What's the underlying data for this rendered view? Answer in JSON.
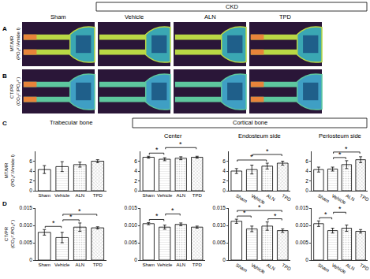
{
  "panel_letters": [
    "A",
    "B",
    "C",
    "D"
  ],
  "group_header": "CKD",
  "image_columns": [
    "Sham",
    "Vehicle",
    "ALN",
    "TPD"
  ],
  "image_rows": [
    {
      "letter": "A",
      "label": [
        "MT/MR",
        "(PO₄³⁻/Amide I)"
      ]
    },
    {
      "letter": "B",
      "label": [
        "CT/PR",
        "(CO₃²⁻/PO₄³⁻)"
      ]
    }
  ],
  "section_headers": {
    "trabecular": "Trabecular bone",
    "cortical": "Cortical bone",
    "cortical_sub": [
      "Center",
      "Endosteum side",
      "Periosteum side"
    ]
  },
  "chart_rows": [
    {
      "letter": "C",
      "ylabel": [
        "MT/MR",
        "(PO₄³⁻/Amide I)"
      ]
    },
    {
      "letter": "D",
      "ylabel": [
        "CT/PR",
        "(CO₃²⁻/PO₄³⁻)"
      ]
    }
  ],
  "chart_data": [
    {
      "type": "bar",
      "categories": [
        "Sham",
        "Vehicle",
        "ALN",
        "TPD"
      ],
      "values": [
        4.3,
        4.9,
        5.3,
        6.0
      ],
      "errors": [
        0.8,
        1.0,
        0.5,
        0.3
      ],
      "colors": [
        "#ffffff",
        "#e6e6e6",
        "#d0d0d0",
        "#b8b8b8"
      ],
      "ylim": [
        0,
        8
      ],
      "yticks": [
        0,
        2,
        4,
        6
      ],
      "grid": false,
      "significance": []
    },
    {
      "type": "bar",
      "categories": [
        "Sham",
        "Vehicle",
        "ALN",
        "TPD"
      ],
      "values": [
        6.8,
        6.4,
        6.6,
        6.8
      ],
      "errors": [
        0.2,
        0.3,
        0.3,
        0.2
      ],
      "colors": [
        "#ffffff",
        "#e6e6e6",
        "#d0d0d0",
        "#b8b8b8"
      ],
      "ylim": [
        0,
        8
      ],
      "yticks": [
        0,
        2,
        4,
        6
      ],
      "grid": false,
      "significance": [
        {
          "pair": [
            0,
            1
          ],
          "label": "*"
        },
        {
          "pair": [
            1,
            3
          ],
          "label": "*"
        }
      ]
    },
    {
      "type": "bar",
      "categories": [
        "Sham",
        "Vehicle",
        "ALN",
        "TPD"
      ],
      "values": [
        4.0,
        4.3,
        5.0,
        5.6
      ],
      "errors": [
        0.5,
        0.9,
        0.6,
        0.4
      ],
      "colors": [
        "#ffffff",
        "#e6e6e6",
        "#d0d0d0",
        "#b8b8b8"
      ],
      "ylim": [
        0,
        8
      ],
      "yticks": [
        0,
        2,
        4,
        6
      ],
      "grid": false,
      "significance": [
        {
          "pair": [
            0,
            2
          ],
          "label": "*"
        },
        {
          "pair": [
            1,
            3
          ],
          "label": "*"
        }
      ]
    },
    {
      "type": "bar",
      "categories": [
        "Sham",
        "Vehicle",
        "ALN",
        "TPD"
      ],
      "values": [
        4.3,
        4.4,
        5.3,
        6.3
      ],
      "errors": [
        0.5,
        0.4,
        0.8,
        0.6
      ],
      "colors": [
        "#ffffff",
        "#e6e6e6",
        "#d0d0d0",
        "#b8b8b8"
      ],
      "ylim": [
        0,
        8
      ],
      "yticks": [
        0,
        2,
        4,
        6
      ],
      "grid": false,
      "significance": [
        {
          "pair": [
            1,
            2
          ],
          "label": "*"
        },
        {
          "pair": [
            1,
            3
          ],
          "label": "*"
        }
      ]
    },
    {
      "type": "bar",
      "categories": [
        "Sham",
        "Vehicle",
        "ALN",
        "TPD"
      ],
      "values": [
        0.008,
        0.0065,
        0.0095,
        0.0093
      ],
      "errors": [
        0.0008,
        0.0015,
        0.0012,
        0.0003
      ],
      "colors": [
        "#ffffff",
        "#e6e6e6",
        "#d0d0d0",
        "#b8b8b8"
      ],
      "ylim": [
        0,
        0.015
      ],
      "yticks": [
        0,
        0.005,
        {
          "value": 0.01,
          "label": "0.010"
        },
        0.015
      ],
      "grid": false,
      "significance": [
        {
          "pair": [
            0,
            1
          ],
          "label": "*"
        },
        {
          "pair": [
            1,
            2
          ],
          "label": "*"
        },
        {
          "pair": [
            1,
            3
          ],
          "label": "*"
        }
      ]
    },
    {
      "type": "bar",
      "categories": [
        "Sham",
        "Vehicle",
        "ALN",
        "TPD"
      ],
      "values": [
        0.0105,
        0.0095,
        0.0103,
        0.0095
      ],
      "errors": [
        0.0003,
        0.0006,
        0.0004,
        0.0003
      ],
      "colors": [
        "#ffffff",
        "#e6e6e6",
        "#d0d0d0",
        "#b8b8b8"
      ],
      "ylim": [
        0,
        0.015
      ],
      "yticks": [
        0,
        0.005,
        {
          "value": 0.01,
          "label": "0.010"
        },
        0.015
      ],
      "grid": false,
      "significance": [
        {
          "pair": [
            0,
            1
          ],
          "label": "*"
        },
        {
          "pair": [
            1,
            2
          ],
          "label": "*"
        }
      ]
    },
    {
      "type": "bar",
      "categories": [
        "Sham",
        "Vehicle",
        "ALN",
        "TPD"
      ],
      "values": [
        0.0112,
        0.009,
        0.0098,
        0.0085
      ],
      "errors": [
        0.0006,
        0.0008,
        0.0012,
        0.0005
      ],
      "colors": [
        "#ffffff",
        "#e6e6e6",
        "#d0d0d0",
        "#b8b8b8"
      ],
      "ylim": [
        0,
        0.015
      ],
      "yticks": [
        0,
        0.005,
        {
          "value": 0.01,
          "label": "0.010"
        },
        0.015
      ],
      "grid": false,
      "significance": [
        {
          "pair": [
            0,
            1
          ],
          "label": "*"
        },
        {
          "pair": [
            2,
            3
          ],
          "label": "*"
        },
        {
          "pair": [
            0,
            3
          ],
          "label": "*"
        }
      ]
    },
    {
      "type": "bar",
      "categories": [
        "Sham",
        "Vehicle",
        "ALN",
        "TPD"
      ],
      "values": [
        0.0105,
        0.0085,
        0.0092,
        0.0083
      ],
      "errors": [
        0.0008,
        0.0007,
        0.0009,
        0.0005
      ],
      "colors": [
        "#ffffff",
        "#e6e6e6",
        "#d0d0d0",
        "#b8b8b8"
      ],
      "ylim": [
        0,
        0.015
      ],
      "yticks": [
        0,
        0.005,
        {
          "value": 0.01,
          "label": "0.010"
        },
        0.015
      ],
      "grid": false,
      "significance": [
        {
          "pair": [
            0,
            1
          ],
          "label": "*"
        },
        {
          "pair": [
            1,
            2
          ],
          "label": "*"
        }
      ]
    }
  ]
}
